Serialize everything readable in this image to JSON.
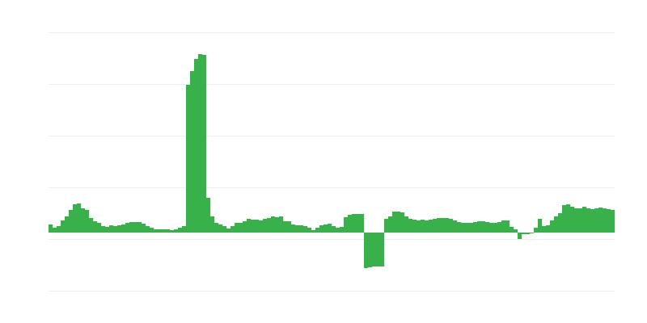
{
  "chart_data": {
    "type": "bar",
    "title": "",
    "xlabel": "",
    "ylabel": "",
    "grid": true,
    "legend": "none",
    "ylim": [
      -72,
      248
    ],
    "gridlines": [
      248,
      184,
      120,
      56,
      -8,
      -72
    ],
    "bar_color": "#39b14b",
    "grid_color": "#eeeeee",
    "values": [
      10,
      6,
      8,
      15,
      20,
      28,
      35,
      36,
      30,
      28,
      18,
      14,
      12,
      8,
      7,
      9,
      8,
      9,
      10,
      12,
      13,
      13,
      13,
      11,
      8,
      6,
      4,
      4,
      4,
      4,
      3,
      4,
      6,
      8,
      183,
      200,
      215,
      221,
      220,
      43,
      20,
      12,
      10,
      8,
      5,
      8,
      12,
      12,
      14,
      17,
      16,
      16,
      15,
      17,
      18,
      20,
      19,
      20,
      14,
      14,
      10,
      9,
      9,
      8,
      6,
      3,
      6,
      9,
      10,
      11,
      8,
      6,
      7,
      19,
      22,
      23,
      23,
      23,
      -44,
      -43,
      -42,
      -42,
      -42,
      17,
      20,
      26,
      26,
      25,
      20,
      17,
      16,
      15,
      16,
      15,
      16,
      17,
      18,
      18,
      18,
      17,
      15,
      13,
      12,
      12,
      12,
      13,
      14,
      14,
      13,
      12,
      12,
      13,
      15,
      15,
      7,
      4,
      -8,
      -2,
      -2,
      -1,
      6,
      17,
      8,
      9,
      15,
      20,
      24,
      34,
      35,
      32,
      30,
      30,
      32,
      30,
      29,
      30,
      31,
      30,
      29,
      28
    ]
  }
}
